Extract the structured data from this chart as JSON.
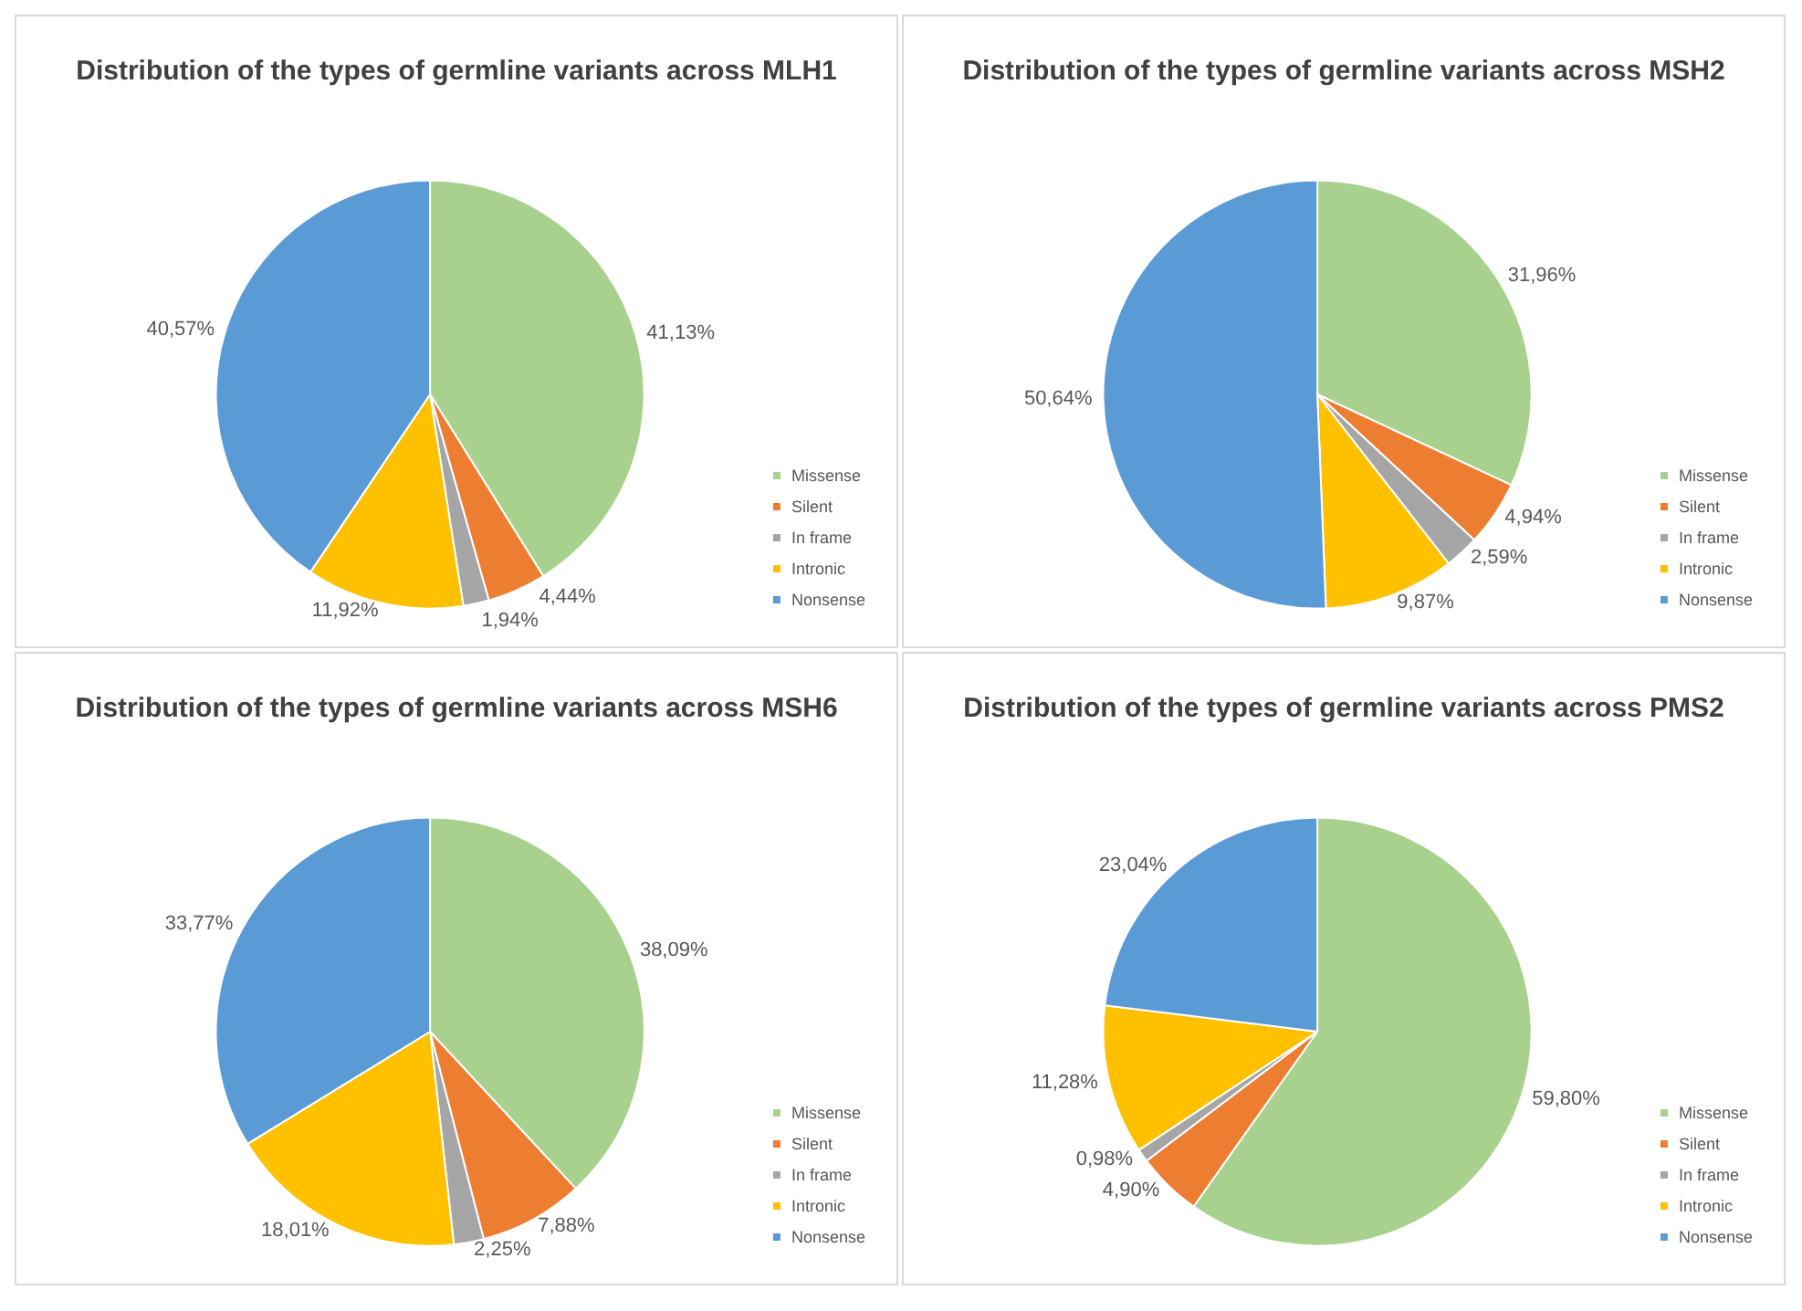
{
  "chart_data": [
    {
      "type": "pie",
      "title": "Distribution of the types of germline variants across MLH1",
      "categories": [
        "Missense",
        "Silent",
        "In frame",
        "Intronic",
        "Nonsense"
      ],
      "colors": [
        "#a9d18e",
        "#ed7d31",
        "#a5a5a5",
        "#ffc000",
        "#5b9bd5"
      ],
      "values": [
        41.13,
        4.44,
        1.94,
        11.92,
        40.57
      ],
      "value_labels": [
        "41,13%",
        "4,44%",
        "1,94%",
        "11,92%",
        "40,57%"
      ],
      "legend": "right"
    },
    {
      "type": "pie",
      "title": "Distribution of the types of germline variants across MSH2",
      "categories": [
        "Missense",
        "Silent",
        "In frame",
        "Intronic",
        "Nonsense"
      ],
      "colors": [
        "#a9d18e",
        "#ed7d31",
        "#a5a5a5",
        "#ffc000",
        "#5b9bd5"
      ],
      "values": [
        31.96,
        4.94,
        2.59,
        9.87,
        50.64
      ],
      "value_labels": [
        "31,96%",
        "4,94%",
        "2,59%",
        "9,87%",
        "50,64%"
      ],
      "legend": "right"
    },
    {
      "type": "pie",
      "title": "Distribution of the types of germline variants across MSH6",
      "categories": [
        "Missense",
        "Silent",
        "In frame",
        "Intronic",
        "Nonsense"
      ],
      "colors": [
        "#a9d18e",
        "#ed7d31",
        "#a5a5a5",
        "#ffc000",
        "#5b9bd5"
      ],
      "values": [
        38.09,
        7.88,
        2.25,
        18.01,
        33.77
      ],
      "value_labels": [
        "38,09%",
        "7,88%",
        "2,25%",
        "18,01%",
        "33,77%"
      ],
      "legend": "right"
    },
    {
      "type": "pie",
      "title": "Distribution of the types of germline variants across PMS2",
      "categories": [
        "Missense",
        "Silent",
        "In frame",
        "Intronic",
        "Nonsense"
      ],
      "colors": [
        "#a9d18e",
        "#ed7d31",
        "#a5a5a5",
        "#ffc000",
        "#5b9bd5"
      ],
      "values": [
        59.8,
        4.9,
        0.98,
        11.28,
        23.04
      ],
      "value_labels": [
        "59,80%",
        "4,90%",
        "0,98%",
        "11,28%",
        "23,04%"
      ],
      "legend": "right"
    }
  ]
}
